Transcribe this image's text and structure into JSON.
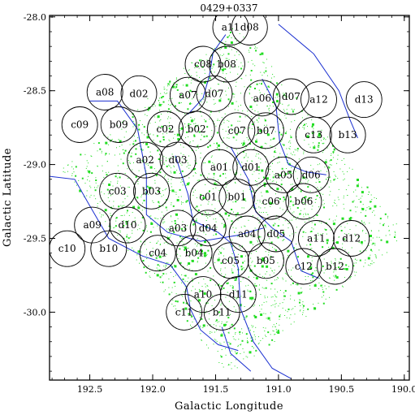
{
  "chart_data": {
    "type": "scatter",
    "title": "0429+0337",
    "xlabel": "Galactic Longitude",
    "ylabel": "Galactic Latitude",
    "xlim": [
      192.82,
      189.96
    ],
    "ylim": [
      -30.46,
      -27.99
    ],
    "x_ticks": [
      "192.5",
      "192.0",
      "191.5",
      "191.0",
      "190.5",
      "190.0"
    ],
    "x_tick_values": [
      192.5,
      192.0,
      191.5,
      191.0,
      190.5,
      190.0
    ],
    "y_ticks": [
      "-28.0",
      "-28.5",
      "-29.0",
      "-29.5",
      "-30.0"
    ],
    "y_tick_values": [
      -28.0,
      -28.5,
      -29.0,
      -29.5,
      -30.0
    ],
    "point_color": "#22dd22",
    "contour_color": "#1a2fd0",
    "survey_footprint": [
      [
        192.73,
        -29.03
      ],
      [
        191.32,
        -28.04
      ],
      [
        189.98,
        -29.49
      ],
      [
        191.38,
        -30.44
      ]
    ],
    "fields": [
      {
        "label": "a11",
        "l": 191.38,
        "b": -28.07
      },
      {
        "label": "d08",
        "l": 191.23,
        "b": -28.07
      },
      {
        "label": "c08",
        "l": 191.6,
        "b": -28.32
      },
      {
        "label": "b08",
        "l": 191.41,
        "b": -28.32
      },
      {
        "label": "a08",
        "l": 192.38,
        "b": -28.51
      },
      {
        "label": "d02",
        "l": 192.11,
        "b": -28.52
      },
      {
        "label": "a07",
        "l": 191.72,
        "b": -28.53
      },
      {
        "label": "d07",
        "l": 191.51,
        "b": -28.52
      },
      {
        "label": "a06",
        "l": 191.13,
        "b": -28.55
      },
      {
        "label": "d07",
        "l": 190.9,
        "b": -28.54
      },
      {
        "label": "a12",
        "l": 190.68,
        "b": -28.56
      },
      {
        "label": "d13",
        "l": 190.32,
        "b": -28.56
      },
      {
        "label": "c09",
        "l": 192.58,
        "b": -28.73
      },
      {
        "label": "b09",
        "l": 192.27,
        "b": -28.73
      },
      {
        "label": "c02",
        "l": 191.9,
        "b": -28.76
      },
      {
        "label": "b02",
        "l": 191.65,
        "b": -28.76
      },
      {
        "label": "c07",
        "l": 191.33,
        "b": -28.77
      },
      {
        "label": "b07",
        "l": 191.1,
        "b": -28.77
      },
      {
        "label": "c13",
        "l": 190.72,
        "b": -28.8
      },
      {
        "label": "b13",
        "l": 190.45,
        "b": -28.8
      },
      {
        "label": "a02",
        "l": 192.06,
        "b": -28.97
      },
      {
        "label": "d03",
        "l": 191.8,
        "b": -28.97
      },
      {
        "label": "a01",
        "l": 191.47,
        "b": -29.02
      },
      {
        "label": "d01",
        "l": 191.22,
        "b": -29.02
      },
      {
        "label": "a05",
        "l": 190.96,
        "b": -29.07
      },
      {
        "label": "d06",
        "l": 190.74,
        "b": -29.07
      },
      {
        "label": "c03",
        "l": 192.28,
        "b": -29.18
      },
      {
        "label": "b03",
        "l": 192.01,
        "b": -29.18
      },
      {
        "label": "c01",
        "l": 191.56,
        "b": -29.22
      },
      {
        "label": "b01",
        "l": 191.33,
        "b": -29.22
      },
      {
        "label": "c06",
        "l": 191.06,
        "b": -29.25
      },
      {
        "label": "b06",
        "l": 190.8,
        "b": -29.25
      },
      {
        "label": "a09",
        "l": 192.48,
        "b": -29.41
      },
      {
        "label": "d10",
        "l": 192.2,
        "b": -29.41
      },
      {
        "label": "a03",
        "l": 191.8,
        "b": -29.43
      },
      {
        "label": "d04",
        "l": 191.56,
        "b": -29.43
      },
      {
        "label": "a04",
        "l": 191.25,
        "b": -29.47
      },
      {
        "label": "d05",
        "l": 191.02,
        "b": -29.47
      },
      {
        "label": "a11",
        "l": 190.7,
        "b": -29.5
      },
      {
        "label": "d12",
        "l": 190.42,
        "b": -29.5
      },
      {
        "label": "c10",
        "l": 192.68,
        "b": -29.57
      },
      {
        "label": "b10",
        "l": 192.35,
        "b": -29.57
      },
      {
        "label": "c04",
        "l": 191.96,
        "b": -29.6
      },
      {
        "label": "b04",
        "l": 191.67,
        "b": -29.6
      },
      {
        "label": "c05",
        "l": 191.38,
        "b": -29.65
      },
      {
        "label": "b05",
        "l": 191.1,
        "b": -29.65
      },
      {
        "label": "c12",
        "l": 190.8,
        "b": -29.69
      },
      {
        "label": "b12",
        "l": 190.55,
        "b": -29.69
      },
      {
        "label": "a10",
        "l": 191.6,
        "b": -29.88
      },
      {
        "label": "d11",
        "l": 191.32,
        "b": -29.88
      },
      {
        "label": "c11",
        "l": 191.75,
        "b": -30.0
      },
      {
        "label": "b11",
        "l": 191.45,
        "b": -30.0
      }
    ],
    "contours": [
      [
        [
          192.82,
          -29.08
        ],
        [
          192.62,
          -29.1
        ],
        [
          192.5,
          -29.28
        ],
        [
          192.35,
          -29.5
        ],
        [
          192.08,
          -29.62
        ],
        [
          191.86,
          -29.68
        ],
        [
          191.73,
          -29.83
        ],
        [
          191.7,
          -29.98
        ],
        [
          191.62,
          -30.12
        ],
        [
          191.48,
          -30.22
        ],
        [
          191.32,
          -30.26
        ]
      ],
      [
        [
          192.5,
          -28.57
        ],
        [
          192.28,
          -28.57
        ],
        [
          192.12,
          -28.76
        ],
        [
          192.05,
          -29.08
        ],
        [
          192.05,
          -29.34
        ],
        [
          191.88,
          -29.46
        ],
        [
          191.62,
          -29.52
        ],
        [
          191.33,
          -29.48
        ],
        [
          191.12,
          -29.43
        ]
      ],
      [
        [
          191.82,
          -28.94
        ],
        [
          191.72,
          -29.2
        ],
        [
          191.68,
          -29.38
        ],
        [
          191.48,
          -29.46
        ],
        [
          191.38,
          -29.53
        ],
        [
          191.32,
          -29.7
        ],
        [
          191.3,
          -29.98
        ],
        [
          191.2,
          -30.2
        ],
        [
          191.05,
          -30.38
        ],
        [
          190.9,
          -30.45
        ]
      ],
      [
        [
          191.72,
          -28.66
        ],
        [
          191.6,
          -28.55
        ],
        [
          191.55,
          -28.4
        ],
        [
          191.52,
          -28.24
        ],
        [
          191.42,
          -28.12
        ]
      ],
      [
        [
          191.38,
          -28.88
        ],
        [
          191.24,
          -29.1
        ],
        [
          191.18,
          -29.32
        ],
        [
          191.05,
          -29.43
        ],
        [
          190.9,
          -29.52
        ],
        [
          190.82,
          -29.72
        ],
        [
          190.68,
          -29.77
        ]
      ],
      [
        [
          191.13,
          -28.42
        ],
        [
          191.02,
          -28.6
        ],
        [
          190.99,
          -28.85
        ],
        [
          190.92,
          -29.0
        ],
        [
          190.78,
          -29.05
        ],
        [
          190.62,
          -29.07
        ]
      ],
      [
        [
          191.0,
          -28.05
        ],
        [
          190.72,
          -28.25
        ],
        [
          190.52,
          -28.5
        ],
        [
          190.43,
          -28.7
        ],
        [
          190.37,
          -28.82
        ]
      ],
      [
        [
          191.45,
          -30.1
        ],
        [
          191.38,
          -30.28
        ],
        [
          191.22,
          -30.4
        ]
      ]
    ]
  }
}
